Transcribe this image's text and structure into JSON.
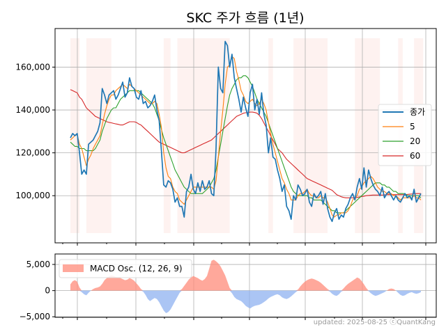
{
  "chart_data": [
    {
      "type": "line",
      "title": "SKC 주가 흐름 (1년)",
      "xlabel": "",
      "ylabel": "",
      "ylim": [
        78000,
        178000
      ],
      "yticks": [
        100000,
        120000,
        140000,
        160000
      ],
      "ytick_labels": [
        "100,000",
        "120,000",
        "140,000",
        "160,000"
      ],
      "grid": true,
      "legend_position": "center-right",
      "shaded_periods": [
        [
          0,
          4
        ],
        [
          7,
          18
        ],
        [
          41,
          44
        ],
        [
          47,
          70
        ],
        [
          87,
          89
        ],
        [
          98,
          113
        ],
        [
          125,
          136
        ],
        [
          144,
          146
        ],
        [
          151,
          155
        ]
      ],
      "shade_color": "#fde8e3",
      "series": [
        {
          "name": "종가",
          "color": "#1f77b4",
          "values": [
            127000,
            129000,
            128000,
            129000,
            120000,
            110000,
            112000,
            110000,
            124000,
            125000,
            126000,
            128000,
            130000,
            134000,
            150000,
            147000,
            143000,
            147000,
            148000,
            149000,
            145000,
            147000,
            150000,
            153000,
            146000,
            148000,
            155000,
            151000,
            150000,
            146000,
            145000,
            149000,
            143000,
            144000,
            141000,
            142000,
            144000,
            147000,
            140000,
            135000,
            121000,
            105000,
            104000,
            107000,
            106000,
            103000,
            97000,
            99000,
            95000,
            95000,
            90000,
            102000,
            104000,
            110000,
            103000,
            101000,
            106000,
            102000,
            107000,
            103000,
            104000,
            107000,
            101000,
            100000,
            122000,
            160000,
            150000,
            148000,
            172000,
            170000,
            160000,
            166000,
            155000,
            150000,
            145000,
            139000,
            146000,
            141000,
            137000,
            148000,
            152000,
            140000,
            145000,
            138000,
            148000,
            138000,
            133000,
            120000,
            127000,
            118000,
            117000,
            112000,
            108000,
            102000,
            105000,
            95000,
            93000,
            89000,
            100000,
            98000,
            105000,
            103000,
            100000,
            101000,
            103000,
            97000,
            95000,
            101000,
            99000,
            100000,
            102000,
            96000,
            101000,
            94000,
            90000,
            88000,
            92000,
            94000,
            89000,
            91000,
            90000,
            94000,
            96000,
            99000,
            101000,
            98000,
            104000,
            108000,
            103000,
            113000,
            104000,
            112000,
            108000,
            105000,
            103000,
            102000,
            100000,
            104000,
            99000,
            101000,
            102000,
            100000,
            98000,
            100000,
            98000,
            97000,
            99000,
            101000,
            99000,
            100000,
            98000,
            103000,
            97000,
            99000,
            101000
          ]
        },
        {
          "name": "5",
          "color": "#ff7f0e",
          "values": [
            126000,
            127000,
            128000,
            128500,
            124000,
            122000,
            118000,
            114000,
            117000,
            119000,
            122000,
            124000,
            126000,
            128000,
            133000,
            138000,
            142000,
            145000,
            147000,
            147000,
            149000,
            150000,
            151000,
            152000,
            151000,
            150000,
            152000,
            151000,
            150000,
            149000,
            148000,
            147000,
            146000,
            145000,
            144000,
            143000,
            143000,
            144000,
            143000,
            138000,
            132000,
            120000,
            113000,
            109000,
            108000,
            104000,
            102000,
            101000,
            98000,
            97000,
            96000,
            98000,
            100000,
            102000,
            104000,
            104000,
            104000,
            104000,
            104000,
            104000,
            104000,
            104000,
            104000,
            103000,
            107000,
            118000,
            130000,
            140000,
            152000,
            160000,
            161000,
            165000,
            164000,
            158000,
            154000,
            149000,
            147000,
            144000,
            143000,
            144000,
            145000,
            143000,
            142000,
            143000,
            145000,
            143000,
            140000,
            134000,
            129000,
            124000,
            120000,
            116000,
            112000,
            108000,
            106000,
            103000,
            101000,
            98000,
            98000,
            98000,
            100000,
            101000,
            101000,
            102000,
            103000,
            101000,
            100000,
            100000,
            99000,
            99000,
            100000,
            99000,
            99000,
            97000,
            94000,
            91000,
            90000,
            91000,
            91000,
            92000,
            92000,
            92000,
            93000,
            95000,
            98000,
            99000,
            100000,
            103000,
            104000,
            106000,
            107000,
            108000,
            109000,
            108000,
            106000,
            104000,
            103000,
            102000,
            102000,
            101000,
            101000,
            101000,
            100000,
            100000,
            99000,
            98000,
            99000,
            99000,
            99000,
            99000,
            99000,
            100000,
            99000,
            99000,
            98000
          ]
        },
        {
          "name": "20",
          "color": "#2ca02c",
          "values": [
            125000,
            124000,
            123000,
            123000,
            122000,
            122000,
            122000,
            121000,
            121000,
            121000,
            121000,
            122000,
            124000,
            126000,
            130000,
            133000,
            136000,
            138000,
            140000,
            141000,
            141000,
            143000,
            145000,
            146000,
            147000,
            148000,
            149000,
            149000,
            149000,
            149000,
            149000,
            148000,
            147000,
            146000,
            145000,
            144000,
            143000,
            141000,
            138000,
            135000,
            131000,
            127000,
            124000,
            121000,
            118000,
            115000,
            112000,
            110000,
            108000,
            106000,
            104000,
            103000,
            102000,
            101000,
            101000,
            101000,
            101000,
            101000,
            101000,
            102000,
            103000,
            104000,
            106000,
            108000,
            112000,
            118000,
            124000,
            130000,
            136000,
            142000,
            147000,
            150000,
            152000,
            154000,
            155000,
            155000,
            156000,
            156000,
            155000,
            153000,
            151000,
            148000,
            145000,
            143000,
            141000,
            139000,
            137000,
            134000,
            131000,
            128000,
            125000,
            122000,
            119000,
            116000,
            113000,
            110000,
            107000,
            104000,
            102000,
            101000,
            100000,
            100000,
            100000,
            100000,
            100000,
            99000,
            99000,
            98000,
            98000,
            98000,
            98000,
            97000,
            96000,
            95000,
            94000,
            93000,
            93000,
            92000,
            92000,
            92000,
            92000,
            93000,
            94000,
            95000,
            96000,
            97000,
            98000,
            99000,
            100000,
            101000,
            102000,
            103000,
            104000,
            105000,
            106000,
            106000,
            106000,
            105000,
            105000,
            104000,
            104000,
            103000,
            102000,
            102000,
            101000,
            101000,
            101000,
            101000,
            100000,
            100000,
            100000,
            100000,
            100000,
            100000,
            99000
          ]
        },
        {
          "name": "60",
          "color": "#d62728",
          "values": [
            149500,
            149000,
            148500,
            148000,
            146000,
            145000,
            143000,
            141000,
            140000,
            139000,
            138000,
            137000,
            136500,
            136000,
            135500,
            135000,
            134500,
            134200,
            134000,
            133700,
            133500,
            133300,
            133000,
            133000,
            133500,
            134000,
            134500,
            134500,
            134500,
            134200,
            133500,
            133000,
            132000,
            131000,
            130000,
            129000,
            128000,
            127000,
            126000,
            125000,
            124500,
            124000,
            123500,
            123000,
            122500,
            122000,
            121500,
            121000,
            120500,
            120000,
            120000,
            120500,
            121000,
            121500,
            122000,
            122500,
            123000,
            123500,
            124000,
            124500,
            125000,
            125500,
            126000,
            127000,
            128000,
            129000,
            130000,
            131000,
            132000,
            133000,
            134000,
            135000,
            136000,
            137000,
            137500,
            138000,
            138500,
            138700,
            138800,
            139000,
            139000,
            138800,
            138500,
            137500,
            136000,
            134000,
            132000,
            130000,
            128000,
            126000,
            124000,
            122000,
            121000,
            120000,
            118500,
            117000,
            116000,
            115000,
            114000,
            113000,
            112000,
            111000,
            110000,
            109000,
            108000,
            107500,
            107000,
            106500,
            106000,
            105500,
            105000,
            104500,
            104000,
            103500,
            103000,
            102500,
            101500,
            100500,
            100000,
            99500,
            99200,
            99000,
            99000,
            99000,
            99000,
            99000,
            99200,
            99400,
            99600,
            99800,
            100000,
            100100,
            100200,
            100300,
            100300,
            100300,
            100300,
            100300,
            100400,
            100500,
            100500,
            100500,
            100500,
            100500,
            100500,
            100500,
            100500,
            100500,
            100600,
            100700,
            100800,
            100900,
            101000,
            101000,
            101000
          ]
        }
      ]
    },
    {
      "type": "area",
      "title": "",
      "xlabel": "",
      "ylabel": "",
      "ylim": [
        -5100,
        7000
      ],
      "yticks": [
        -5000,
        0,
        5000
      ],
      "ytick_labels": [
        "−5,000",
        "0",
        "5,000"
      ],
      "grid": true,
      "legend_position": "top-left",
      "positive_color": "#ff8b7a",
      "negative_color": "#8fb1f0",
      "series": [
        {
          "name": "MACD Osc. (12, 26, 9)",
          "values": [
            1200,
            1800,
            2000,
            1700,
            600,
            -300,
            -700,
            -900,
            -400,
            0,
            300,
            500,
            600,
            800,
            1300,
            2000,
            2400,
            2700,
            2900,
            2800,
            2600,
            2500,
            2400,
            2200,
            2000,
            2100,
            2400,
            2200,
            1900,
            1400,
            900,
            300,
            -200,
            -800,
            -1600,
            -2000,
            -1700,
            -1400,
            -1600,
            -2200,
            -3000,
            -3800,
            -4300,
            -4100,
            -3600,
            -2800,
            -2000,
            -1200,
            -400,
            300,
            900,
            1500,
            2100,
            2500,
            2800,
            2600,
            2400,
            2100,
            1900,
            2200,
            2800,
            4200,
            5700,
            5900,
            5600,
            5200,
            4600,
            3800,
            2900,
            1700,
            500,
            -500,
            -1200,
            -1600,
            -1800,
            -2000,
            -2400,
            -2900,
            -3200,
            -3400,
            -3100,
            -2900,
            -2800,
            -2700,
            -2500,
            -2200,
            -1900,
            -1500,
            -1200,
            -1000,
            -800,
            -700,
            -900,
            -1300,
            -1500,
            -1600,
            -1400,
            -1100,
            -700,
            -300,
            200,
            800,
            1300,
            1700,
            2000,
            2200,
            2300,
            2200,
            2000,
            1800,
            1500,
            1100,
            700,
            300,
            -200,
            -600,
            -900,
            -1000,
            -700,
            -200,
            400,
            900,
            1300,
            1600,
            1900,
            2200,
            2500,
            2300,
            1800,
            1200,
            500,
            -100,
            -500,
            -800,
            -1000,
            -900,
            -700,
            -500,
            -300,
            0,
            300,
            400,
            300,
            0,
            -400,
            -800,
            -1000,
            -900,
            -600,
            -400,
            -300,
            -500,
            -600,
            -500,
            -300
          ]
        }
      ]
    }
  ],
  "footer_text": "updated: 2025-08-25 ⓒQuantKang"
}
